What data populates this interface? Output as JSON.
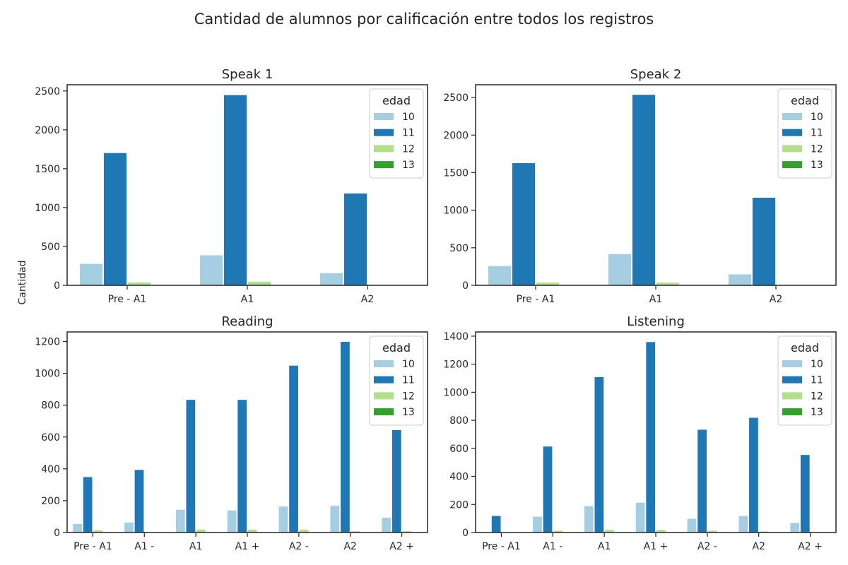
{
  "figure": {
    "title": "Cantidad de alumnos por calificación entre todos los registros",
    "ylabel": "Cantidad"
  },
  "series_colors": [
    "#a6cee3",
    "#1f78b4",
    "#b2df8a",
    "#33a02c"
  ],
  "chart_data": [
    {
      "type": "bar",
      "title": "Speak 1",
      "xlabel": "",
      "ylabel": "Cantidad",
      "categories": [
        "Pre - A1",
        "A1",
        "A2"
      ],
      "ylim": [
        0,
        2580
      ],
      "yticks": [
        0,
        500,
        1000,
        1500,
        2000,
        2500
      ],
      "legend": {
        "title": "edad",
        "position": "upper right"
      },
      "series": [
        {
          "name": "10",
          "values": [
            280,
            390,
            160
          ]
        },
        {
          "name": "11",
          "values": [
            1705,
            2450,
            1185
          ]
        },
        {
          "name": "12",
          "values": [
            40,
            50,
            0
          ]
        },
        {
          "name": "13",
          "values": [
            0,
            0,
            0
          ]
        }
      ]
    },
    {
      "type": "bar",
      "title": "Speak 2",
      "xlabel": "",
      "ylabel": "",
      "categories": [
        "Pre - A1",
        "A1",
        "A2"
      ],
      "ylim": [
        0,
        2670
      ],
      "yticks": [
        0,
        500,
        1000,
        1500,
        2000,
        2500
      ],
      "legend": {
        "title": "edad",
        "position": "upper right"
      },
      "series": [
        {
          "name": "10",
          "values": [
            260,
            420,
            150
          ]
        },
        {
          "name": "11",
          "values": [
            1630,
            2540,
            1170
          ]
        },
        {
          "name": "12",
          "values": [
            40,
            40,
            0
          ]
        },
        {
          "name": "13",
          "values": [
            0,
            0,
            0
          ]
        }
      ]
    },
    {
      "type": "bar",
      "title": "Reading",
      "xlabel": "",
      "ylabel": "",
      "categories": [
        "Pre - A1",
        "A1 -",
        "A1",
        "A1 +",
        "A2 -",
        "A2",
        "A2 +"
      ],
      "ylim": [
        0,
        1260
      ],
      "yticks": [
        0,
        200,
        400,
        600,
        800,
        1000,
        1200
      ],
      "legend": {
        "title": "edad",
        "position": "upper right"
      },
      "series": [
        {
          "name": "10",
          "values": [
            55,
            65,
            145,
            140,
            165,
            170,
            95
          ]
        },
        {
          "name": "11",
          "values": [
            350,
            395,
            835,
            835,
            1050,
            1200,
            645
          ]
        },
        {
          "name": "12",
          "values": [
            15,
            0,
            20,
            20,
            20,
            10,
            10
          ]
        },
        {
          "name": "13",
          "values": [
            0,
            0,
            0,
            0,
            0,
            0,
            0
          ]
        }
      ]
    },
    {
      "type": "bar",
      "title": "Listening",
      "xlabel": "",
      "ylabel": "",
      "categories": [
        "Pre - A1",
        "A1 -",
        "A1",
        "A1 +",
        "A2 -",
        "A2",
        "A2 +"
      ],
      "ylim": [
        0,
        1430
      ],
      "yticks": [
        0,
        200,
        400,
        600,
        800,
        1000,
        1200,
        1400
      ],
      "legend": {
        "title": "edad",
        "position": "upper right"
      },
      "series": [
        {
          "name": "10",
          "values": [
            0,
            115,
            190,
            215,
            100,
            120,
            70
          ]
        },
        {
          "name": "11",
          "values": [
            120,
            615,
            1110,
            1360,
            735,
            820,
            555
          ]
        },
        {
          "name": "12",
          "values": [
            0,
            15,
            20,
            20,
            15,
            10,
            0
          ]
        },
        {
          "name": "13",
          "values": [
            0,
            0,
            0,
            0,
            0,
            0,
            0
          ]
        }
      ]
    }
  ]
}
